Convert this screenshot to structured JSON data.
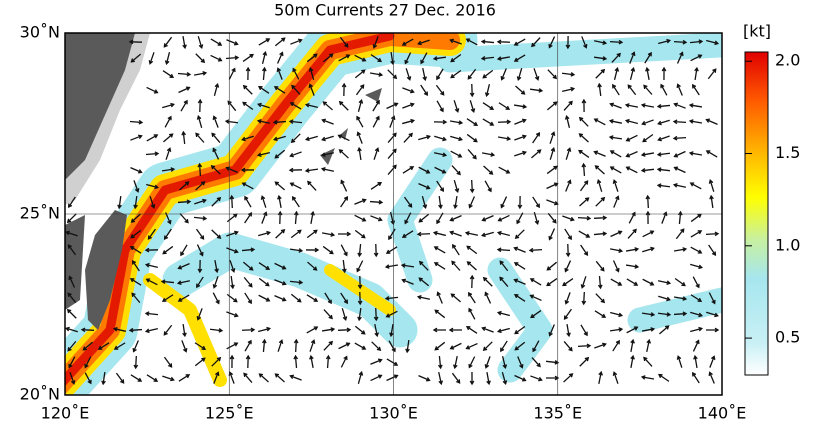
{
  "header": {
    "title": "50m Currents  27 Dec. 2016"
  },
  "map": {
    "xlim": [
      120,
      140
    ],
    "ylim": [
      20,
      30
    ],
    "xticks": [
      {
        "value": 120,
        "label": "120˚E"
      },
      {
        "value": 125,
        "label": "125˚E"
      },
      {
        "value": 130,
        "label": "130˚E"
      },
      {
        "value": 135,
        "label": "135˚E"
      },
      {
        "value": 140,
        "label": "140˚E"
      }
    ],
    "yticks": [
      {
        "value": 20,
        "label": "20˚N"
      },
      {
        "value": 25,
        "label": "25˚N"
      },
      {
        "value": 30,
        "label": "30˚N"
      }
    ],
    "grid": true
  },
  "colorbar": {
    "unit": "[kt]",
    "range": [
      0.3,
      2.05
    ],
    "ticks": [
      0.5,
      {
        "value": 1,
        "label": "1.0"
      },
      1.5,
      {
        "value": 2,
        "label": "2.0"
      }
    ]
  }
}
